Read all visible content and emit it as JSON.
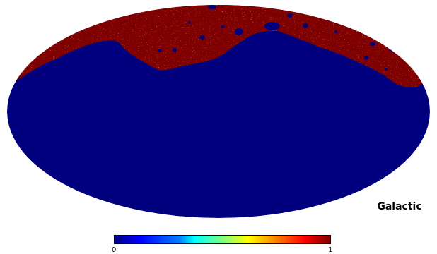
{
  "map": {
    "projection": "mollweide",
    "coordinate_label": "Galactic",
    "colors": {
      "low": "#00007f",
      "high": "#7f0000",
      "background": "#ffffff"
    }
  },
  "colorbar": {
    "min_label": "0",
    "max_label": "1",
    "colormap": "jet"
  }
}
